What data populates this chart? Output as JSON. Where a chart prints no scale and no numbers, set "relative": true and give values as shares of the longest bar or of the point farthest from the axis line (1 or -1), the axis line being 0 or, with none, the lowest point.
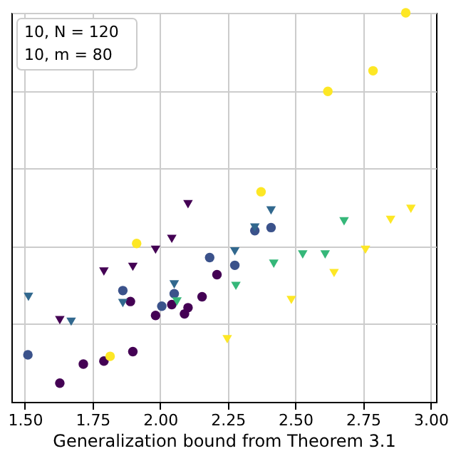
{
  "chart_data": {
    "type": "scatter",
    "relative": true,
    "xlabel": "Generalization bound from Theorem 3.1",
    "xlim": [
      1.45,
      3.02
    ],
    "xticks": [
      {
        "value": 1.5,
        "label": "1.50"
      },
      1.75,
      {
        "value": 2.0,
        "label": "2.00"
      },
      2.25,
      {
        "value": 2.5,
        "label": "2.50"
      },
      2.75,
      {
        "value": 3.0,
        "label": "3.00"
      }
    ],
    "grid": true,
    "annotations": [
      "10, N = 120",
      "10, m = 80"
    ],
    "series": [
      {
        "color": "#440154",
        "marker": "circle",
        "x": [
          1.629,
          1.716,
          1.792,
          1.899,
          1.983,
          2.043,
          2.09,
          2.103,
          2.155,
          2.21,
          1.89
        ],
        "values": [
          0.048,
          0.097,
          0.105,
          0.129,
          0.222,
          0.25,
          0.226,
          0.242,
          0.27,
          0.327,
          0.258
        ]
      },
      {
        "color": "#3b528b",
        "marker": "circle",
        "x": [
          1.511,
          1.862,
          2.006,
          2.052,
          2.183,
          2.276,
          2.35,
          2.41
        ],
        "values": [
          0.121,
          0.286,
          0.246,
          0.278,
          0.371,
          0.351,
          0.44,
          0.448
        ]
      },
      {
        "color": "#fde725",
        "marker": "circle",
        "x": [
          1.815,
          1.913,
          2.373,
          2.62,
          2.787,
          2.908
        ],
        "values": [
          0.117,
          0.407,
          0.54,
          0.798,
          0.851,
          1
        ]
      },
      {
        "color": "#440154",
        "marker": "triangle",
        "x": [
          1.629,
          1.792,
          1.899,
          1.983,
          2.043,
          2.103
        ],
        "values": [
          0.21,
          0.335,
          0.347,
          0.391,
          0.419,
          0.508
        ]
      },
      {
        "color": "#31688e",
        "marker": "triangle",
        "x": [
          1.513,
          1.671,
          1.862,
          2.052,
          2.276,
          2.35,
          2.41
        ],
        "values": [
          0.27,
          0.206,
          0.254,
          0.302,
          0.387,
          0.448,
          0.492
        ]
      },
      {
        "color": "#35b779",
        "marker": "triangle",
        "x": [
          2.062,
          2.28,
          2.42,
          2.527,
          2.61,
          2.68
        ],
        "values": [
          0.258,
          0.298,
          0.355,
          0.379,
          0.379,
          0.464
        ]
      },
      {
        "color": "#fde725",
        "marker": "triangle",
        "x": [
          2.248,
          2.485,
          2.643,
          2.759,
          2.852,
          2.927
        ],
        "values": [
          0.161,
          0.262,
          0.331,
          0.391,
          0.468,
          0.496
        ]
      }
    ]
  }
}
